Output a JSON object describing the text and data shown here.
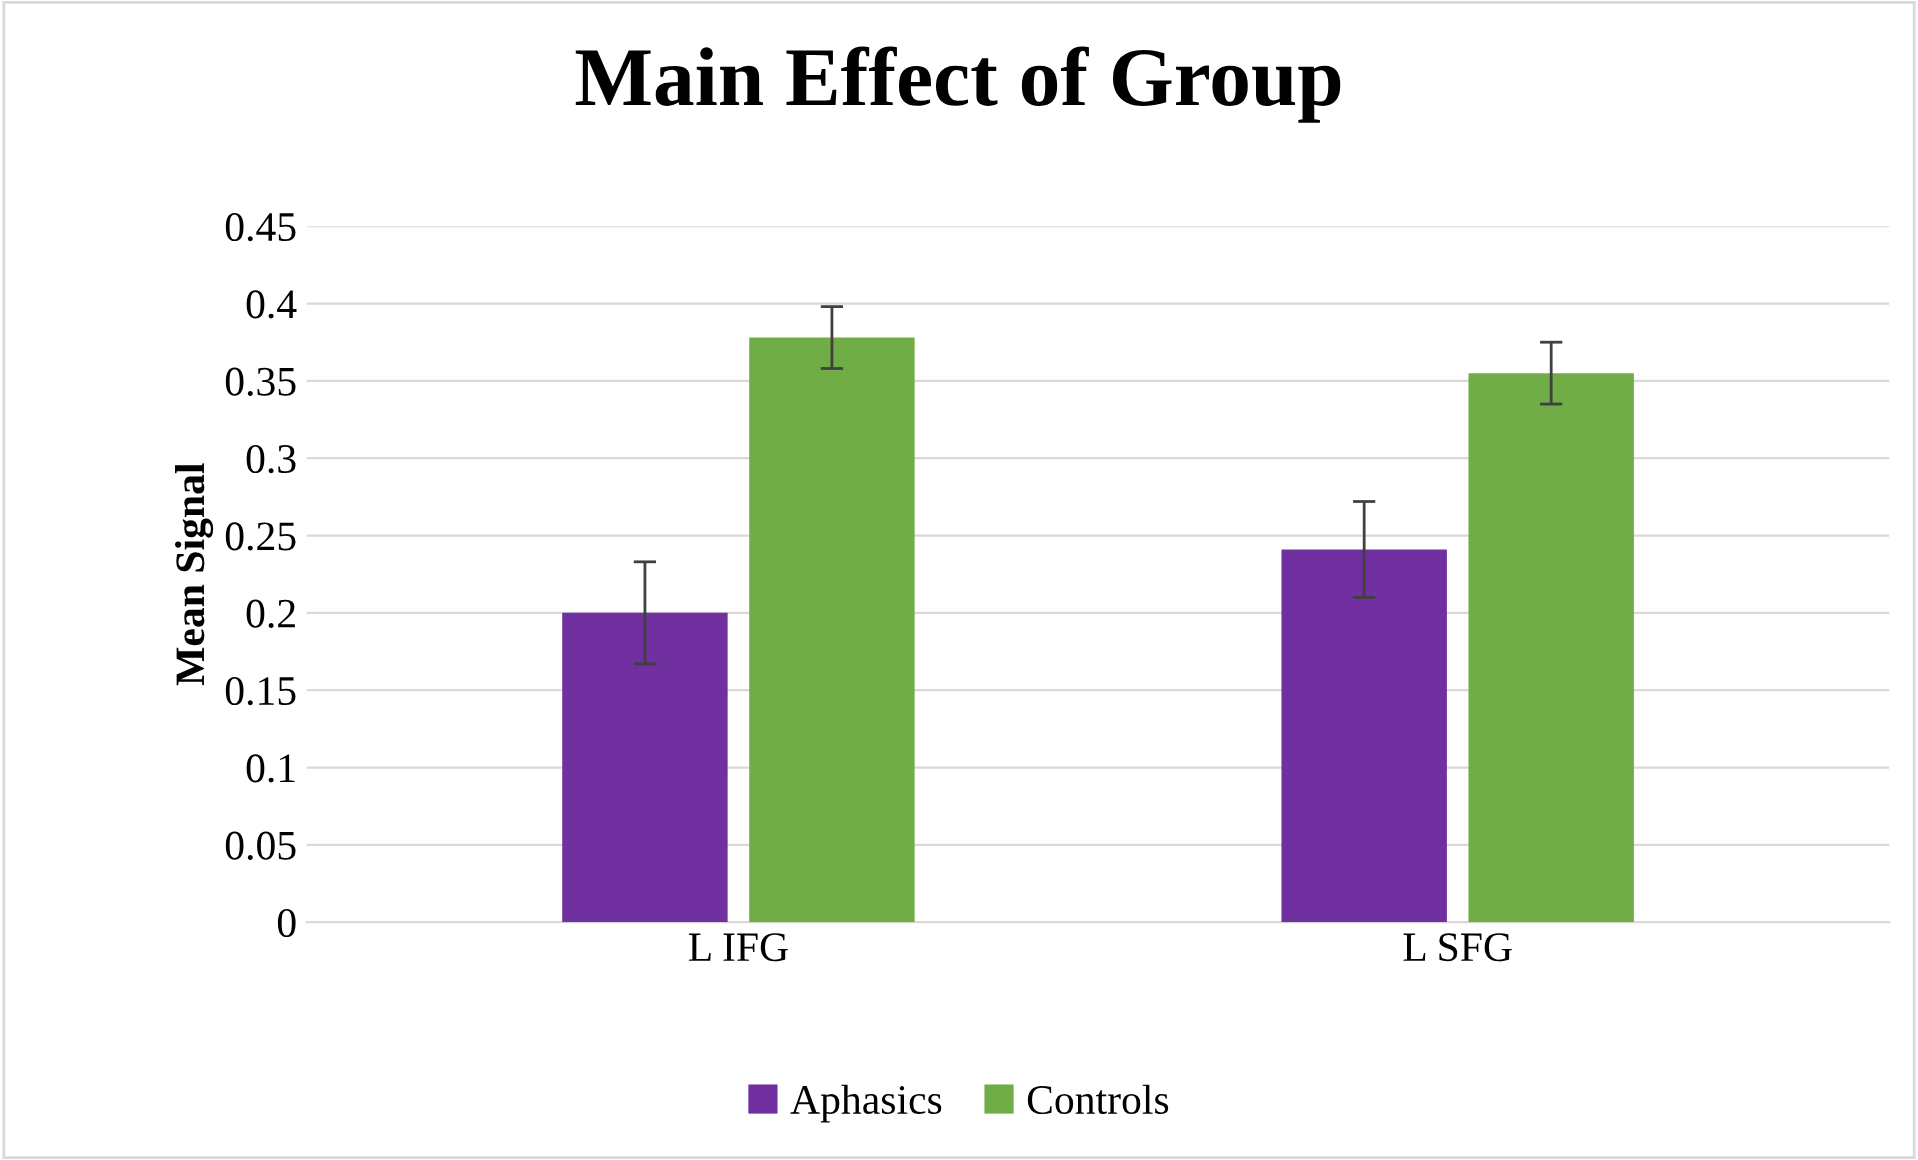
{
  "chart_data": {
    "type": "bar",
    "title": "Main Effect of Group",
    "ylabel": "Mean Signal",
    "categories": [
      "L IFG",
      "L SFG"
    ],
    "series": [
      {
        "name": "Aphasics",
        "color": "#7030a0",
        "values": [
          0.2,
          0.241
        ],
        "errors": [
          0.033,
          0.031
        ]
      },
      {
        "name": "Controls",
        "color": "#70ad47",
        "values": [
          0.378,
          0.355
        ],
        "errors": [
          0.02,
          0.02
        ]
      }
    ],
    "ylim": [
      0,
      0.45
    ],
    "yticks": [
      {
        "value": 0,
        "label": "0"
      },
      {
        "value": 0.05,
        "label": "0.05"
      },
      {
        "value": 0.1,
        "label": "0.1"
      },
      {
        "value": 0.15,
        "label": "0.15"
      },
      {
        "value": 0.2,
        "label": "0.2"
      },
      {
        "value": 0.25,
        "label": "0.25"
      },
      {
        "value": 0.3,
        "label": "0.3"
      },
      {
        "value": 0.35,
        "label": "0.35"
      },
      {
        "value": 0.4,
        "label": "0.4"
      },
      {
        "value": 0.45,
        "label": "0.45"
      }
    ],
    "grid": "y",
    "legend": "bottom"
  }
}
